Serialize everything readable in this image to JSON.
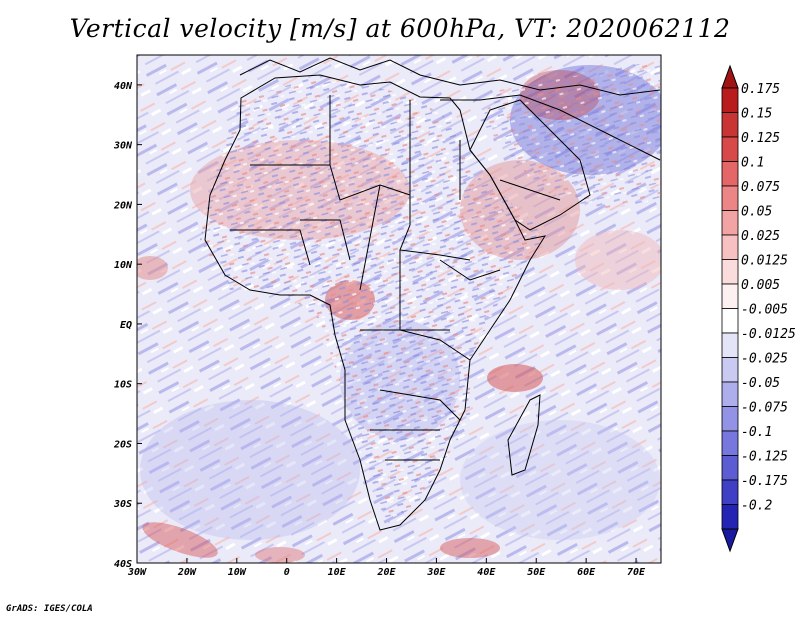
{
  "title": "Vertical velocity [m/s] at 600hPa, VT: 2020062112",
  "credit": "GrADS: IGES/COLA",
  "map": {
    "extent": {
      "lon_min": -30,
      "lon_max": 75,
      "lat_min": -40,
      "lat_max": 45
    },
    "region": "Africa and the Arabian Peninsula",
    "lon_ticks": [
      {
        "value": -30,
        "label": "30W"
      },
      {
        "value": -20,
        "label": "20W"
      },
      {
        "value": -10,
        "label": "10W"
      },
      {
        "value": 0,
        "label": "0"
      },
      {
        "value": 10,
        "label": "10E"
      },
      {
        "value": 20,
        "label": "20E"
      },
      {
        "value": 30,
        "label": "30E"
      },
      {
        "value": 40,
        "label": "40E"
      },
      {
        "value": 50,
        "label": "50E"
      },
      {
        "value": 60,
        "label": "60E"
      },
      {
        "value": 70,
        "label": "70E"
      }
    ],
    "lat_ticks": [
      {
        "value": 40,
        "label": "40N"
      },
      {
        "value": 30,
        "label": "30N"
      },
      {
        "value": 20,
        "label": "20N"
      },
      {
        "value": 10,
        "label": "10N"
      },
      {
        "value": 0,
        "label": "EQ"
      },
      {
        "value": -10,
        "label": "10S"
      },
      {
        "value": -20,
        "label": "20S"
      },
      {
        "value": -30,
        "label": "30S"
      },
      {
        "value": -40,
        "label": "40S"
      }
    ]
  },
  "colorbar": {
    "levels": [
      {
        "label": "0.175",
        "color": "#b81c1c"
      },
      {
        "label": "0.15",
        "color": "#c93434"
      },
      {
        "label": "0.125",
        "color": "#d84a4a"
      },
      {
        "label": "0.1",
        "color": "#e46666"
      },
      {
        "label": "0.075",
        "color": "#ec8585"
      },
      {
        "label": "0.05",
        "color": "#f2a3a3"
      },
      {
        "label": "0.025",
        "color": "#f7c1c1"
      },
      {
        "label": "0.0125",
        "color": "#fadcdc"
      },
      {
        "label": "0.005",
        "color": "#fdf0f0"
      },
      {
        "label": "-0.005",
        "color": "#ffffff"
      },
      {
        "label": "-0.0125",
        "color": "#e4e4f8"
      },
      {
        "label": "-0.025",
        "color": "#c9c9f2"
      },
      {
        "label": "-0.05",
        "color": "#aeaeec"
      },
      {
        "label": "-0.075",
        "color": "#9393e6"
      },
      {
        "label": "-0.1",
        "color": "#7777dd"
      },
      {
        "label": "-0.125",
        "color": "#5c5cd3"
      },
      {
        "label": "-0.175",
        "color": "#4040c7"
      },
      {
        "label": "-0.2",
        "color": "#2424b4"
      }
    ],
    "top_color": "#a01414",
    "bottom_color": "#1a1aa0"
  }
}
